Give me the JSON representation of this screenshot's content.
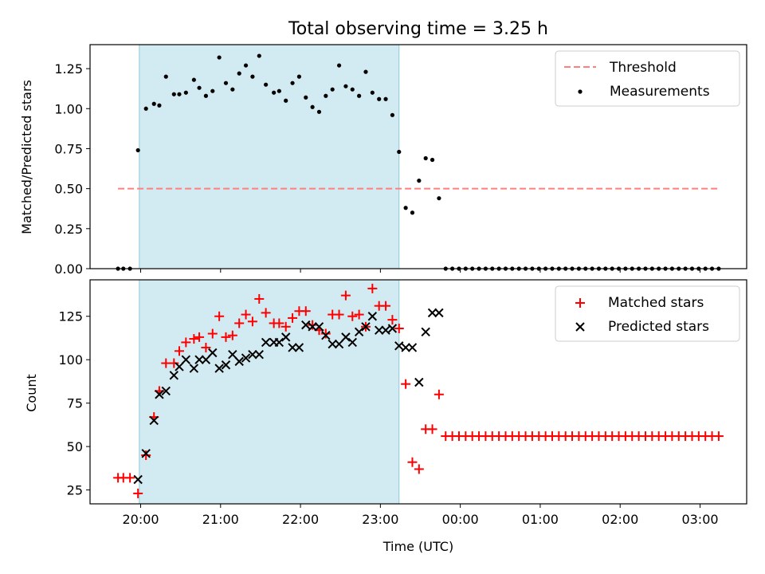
{
  "figure": {
    "title": "Total observing time = 3.25 h"
  },
  "colors": {
    "observing_window": "#add8e6",
    "threshold": "#ff7f7f",
    "measurements": "#000000",
    "matched": "#ff0000",
    "predicted": "#000000"
  },
  "chart_data": [
    {
      "type": "scatter",
      "panel": "top",
      "title": "Total observing time = 3.25 h",
      "xlabel": "",
      "ylabel": "Matched/Predicted stars",
      "xlim": [
        "19:22",
        "03:35"
      ],
      "ylim": [
        0,
        1.4
      ],
      "x_tick_labels": [
        "20:00",
        "21:00",
        "22:00",
        "23:00",
        "00:00",
        "01:00",
        "02:00",
        "03:00"
      ],
      "y_ticks": [
        0.0,
        0.25,
        0.5,
        0.75,
        1.0,
        1.25
      ],
      "y_tick_labels": [
        "0.00",
        "0.25",
        "0.50",
        "0.75",
        "1.00",
        "1.25"
      ],
      "shaded_region": [
        "19:59",
        "23:14"
      ],
      "legend": "top-right",
      "grid": false,
      "threshold": {
        "name": "Threshold",
        "value": 0.5,
        "x_range": [
          "19:43",
          "03:13"
        ],
        "style": "dashed"
      },
      "series": [
        {
          "name": "Measurements",
          "marker": "dot",
          "x": [
            "19:43",
            "19:47",
            "19:52",
            "19:58",
            "20:04",
            "20:10",
            "20:14",
            "20:19",
            "20:25",
            "20:29",
            "20:34",
            "20:40",
            "20:44",
            "20:49",
            "20:54",
            "20:59",
            "21:04",
            "21:09",
            "21:14",
            "21:19",
            "21:24",
            "21:29",
            "21:34",
            "21:40",
            "21:44",
            "21:49",
            "21:54",
            "21:59",
            "22:04",
            "22:09",
            "22:14",
            "22:19",
            "22:24",
            "22:29",
            "22:34",
            "22:39",
            "22:44",
            "22:49",
            "22:54",
            "22:59",
            "23:04",
            "23:09",
            "23:14",
            "23:19",
            "23:24",
            "23:29",
            "23:34",
            "23:39",
            "23:44",
            "23:49",
            "23:54",
            "23:59",
            "00:04",
            "00:09",
            "00:14",
            "00:19",
            "00:24",
            "00:29",
            "00:34",
            "00:39",
            "00:44",
            "00:49",
            "00:54",
            "00:59",
            "01:04",
            "01:09",
            "01:14",
            "01:19",
            "01:24",
            "01:29",
            "01:34",
            "01:39",
            "01:44",
            "01:49",
            "01:54",
            "01:59",
            "02:04",
            "02:09",
            "02:14",
            "02:19",
            "02:24",
            "02:29",
            "02:34",
            "02:39",
            "02:44",
            "02:49",
            "02:54",
            "02:59",
            "03:04",
            "03:09",
            "03:14"
          ],
          "y": [
            0,
            0,
            0,
            0.74,
            1.0,
            1.03,
            1.02,
            1.2,
            1.09,
            1.09,
            1.1,
            1.18,
            1.13,
            1.08,
            1.11,
            1.32,
            1.16,
            1.12,
            1.22,
            1.27,
            1.2,
            1.33,
            1.15,
            1.1,
            1.11,
            1.05,
            1.16,
            1.2,
            1.07,
            1.01,
            0.98,
            1.08,
            1.12,
            1.27,
            1.14,
            1.12,
            1.08,
            1.23,
            1.1,
            1.06,
            1.06,
            0.96,
            0.73,
            0.38,
            0.35,
            0.55,
            0.69,
            0.68,
            0.44,
            0,
            0,
            0,
            0,
            0,
            0,
            0,
            0,
            0,
            0,
            0,
            0,
            0,
            0,
            0,
            0,
            0,
            0,
            0,
            0,
            0,
            0,
            0,
            0,
            0,
            0,
            0,
            0,
            0,
            0,
            0,
            0,
            0,
            0,
            0,
            0,
            0,
            0,
            0,
            0,
            0,
            0
          ]
        }
      ]
    },
    {
      "type": "scatter",
      "panel": "bottom",
      "xlabel": "Time (UTC)",
      "ylabel": "Count",
      "xlim": [
        "19:22",
        "03:35"
      ],
      "ylim": [
        17,
        146
      ],
      "x_tick_labels": [
        "20:00",
        "21:00",
        "22:00",
        "23:00",
        "00:00",
        "01:00",
        "02:00",
        "03:00"
      ],
      "y_ticks": [
        25,
        50,
        75,
        100,
        125
      ],
      "y_tick_labels": [
        "25",
        "50",
        "75",
        "100",
        "125"
      ],
      "shaded_region": [
        "19:59",
        "23:14"
      ],
      "legend": "top-right",
      "grid": false,
      "series": [
        {
          "name": "Matched stars",
          "marker": "plus",
          "x": [
            "19:43",
            "19:47",
            "19:52",
            "19:58",
            "20:04",
            "20:10",
            "20:14",
            "20:19",
            "20:25",
            "20:29",
            "20:34",
            "20:40",
            "20:44",
            "20:49",
            "20:54",
            "20:59",
            "21:04",
            "21:09",
            "21:14",
            "21:19",
            "21:24",
            "21:29",
            "21:34",
            "21:40",
            "21:44",
            "21:49",
            "21:54",
            "21:59",
            "22:04",
            "22:09",
            "22:14",
            "22:19",
            "22:24",
            "22:29",
            "22:34",
            "22:39",
            "22:44",
            "22:49",
            "22:54",
            "22:59",
            "23:04",
            "23:09",
            "23:14",
            "23:19",
            "23:24",
            "23:29",
            "23:34",
            "23:39",
            "23:44",
            "23:49",
            "23:54",
            "23:59",
            "00:04",
            "00:09",
            "00:14",
            "00:19",
            "00:24",
            "00:29",
            "00:34",
            "00:39",
            "00:44",
            "00:49",
            "00:54",
            "00:59",
            "01:04",
            "01:09",
            "01:14",
            "01:19",
            "01:24",
            "01:29",
            "01:34",
            "01:39",
            "01:44",
            "01:49",
            "01:54",
            "01:59",
            "02:04",
            "02:09",
            "02:14",
            "02:19",
            "02:24",
            "02:29",
            "02:34",
            "02:39",
            "02:44",
            "02:49",
            "02:54",
            "02:59",
            "03:04",
            "03:09",
            "03:14"
          ],
          "y": [
            32,
            32,
            32,
            23,
            45,
            67,
            82,
            98,
            98,
            105,
            110,
            112,
            113,
            107,
            115,
            125,
            113,
            114,
            121,
            126,
            122,
            135,
            127,
            121,
            121,
            119,
            124,
            128,
            128,
            120,
            117,
            115,
            126,
            126,
            137,
            125,
            126,
            119,
            141,
            131,
            131,
            123,
            118,
            86,
            41,
            37,
            60,
            60,
            80,
            56,
            56,
            56,
            56,
            56,
            56,
            56,
            56,
            56,
            56,
            56,
            56,
            56,
            56,
            56,
            56,
            56,
            56,
            56,
            56,
            56,
            56,
            56,
            56,
            56,
            56,
            56,
            56,
            56,
            56,
            56,
            56,
            56,
            56,
            56,
            56,
            56,
            56,
            56,
            56,
            56,
            56
          ]
        },
        {
          "name": "Predicted stars",
          "marker": "x",
          "x": [
            "19:58",
            "20:04",
            "20:10",
            "20:14",
            "20:19",
            "20:25",
            "20:29",
            "20:34",
            "20:40",
            "20:44",
            "20:49",
            "20:54",
            "20:59",
            "21:04",
            "21:09",
            "21:14",
            "21:19",
            "21:24",
            "21:29",
            "21:34",
            "21:40",
            "21:44",
            "21:49",
            "21:54",
            "21:59",
            "22:04",
            "22:09",
            "22:14",
            "22:19",
            "22:24",
            "22:29",
            "22:34",
            "22:39",
            "22:44",
            "22:49",
            "22:54",
            "22:59",
            "23:04",
            "23:09",
            "23:14",
            "23:19",
            "23:24",
            "23:29",
            "23:34",
            "23:39",
            "23:44"
          ],
          "y": [
            31,
            46,
            65,
            80,
            82,
            91,
            96,
            100,
            95,
            100,
            100,
            104,
            95,
            97,
            103,
            99,
            101,
            103,
            103,
            110,
            110,
            110,
            113,
            107,
            107,
            120,
            119,
            119,
            114,
            109,
            109,
            113,
            110,
            116,
            119,
            125,
            117,
            117,
            118,
            108,
            107,
            107,
            87,
            116,
            127,
            127
          ]
        }
      ]
    }
  ]
}
